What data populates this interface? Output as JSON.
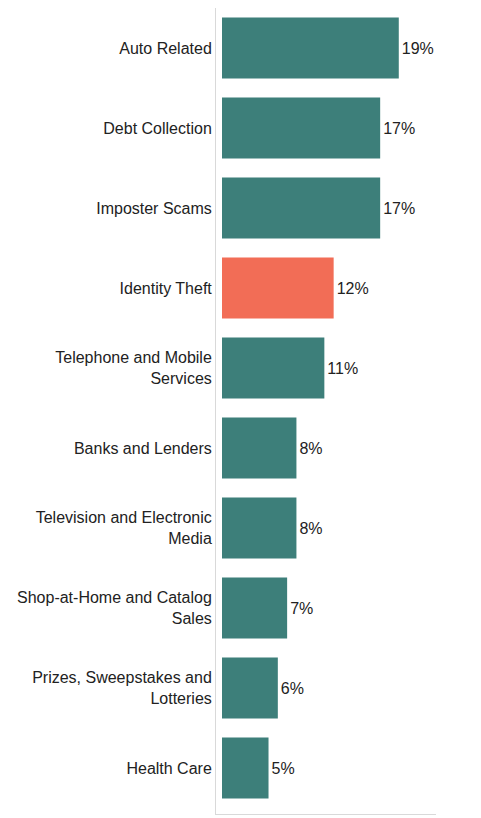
{
  "chart_data": {
    "type": "bar",
    "orientation": "horizontal",
    "categories": [
      "Auto Related",
      "Debt Collection",
      "Imposter Scams",
      "Identity Theft",
      "Telephone and Mobile Services",
      "Banks and Lenders",
      "Television and Electronic Media",
      "Shop-at-Home and Catalog Sales",
      "Prizes, Sweepstakes and Lotteries",
      "Health Care"
    ],
    "values": [
      19,
      17,
      17,
      12,
      11,
      8,
      8,
      7,
      6,
      5
    ],
    "value_labels": [
      "19%",
      "17%",
      "17%",
      "12%",
      "11%",
      "8%",
      "8%",
      "7%",
      "6%",
      "5%"
    ],
    "colors": [
      "#3d7f7a",
      "#3d7f7a",
      "#3d7f7a",
      "#f26d56",
      "#3d7f7a",
      "#3d7f7a",
      "#3d7f7a",
      "#3d7f7a",
      "#3d7f7a",
      "#3d7f7a"
    ],
    "xlim": [
      0,
      23
    ],
    "xticks": [],
    "data_labels": true,
    "tick_labels": "y",
    "grid": false
  }
}
